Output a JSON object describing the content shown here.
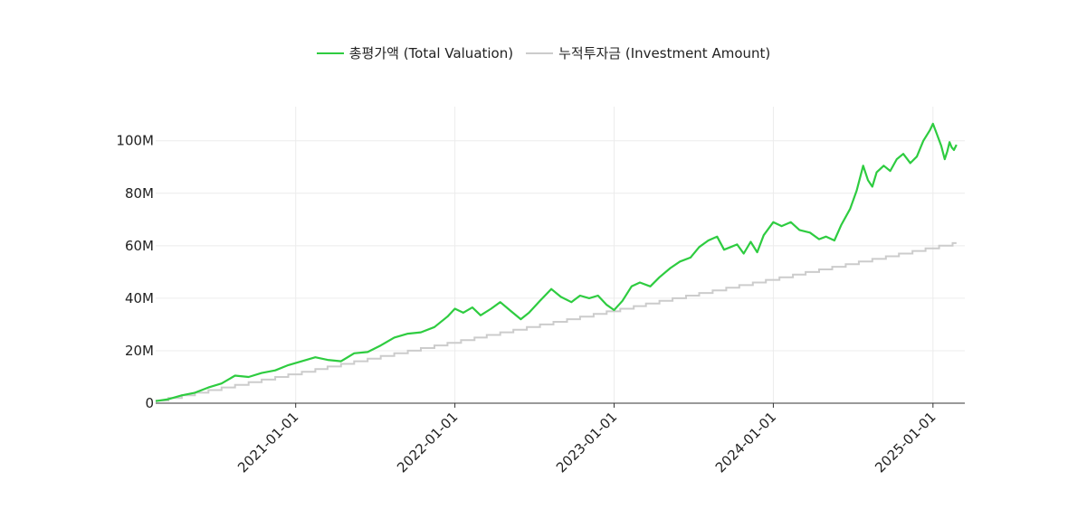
{
  "colors": {
    "valuation": "#2ecc40",
    "investment": "#cccccc",
    "grid": "#ececec",
    "axis": "#333333"
  },
  "legend": {
    "valuation_label": "총평가액 (Total Valuation)",
    "investment_label": "누적투자금 (Investment Amount)"
  },
  "chart_data": {
    "type": "line",
    "x_type": "date",
    "xlim": [
      "2020-02-15",
      "2025-03-15"
    ],
    "ylim": [
      0,
      113000000
    ],
    "grid": true,
    "legend_position": "top-center",
    "y_ticks": [
      {
        "value": 0,
        "label": "0"
      },
      {
        "value": 20000000,
        "label": "20M"
      },
      {
        "value": 40000000,
        "label": "40M"
      },
      {
        "value": 60000000,
        "label": "60M"
      },
      {
        "value": 80000000,
        "label": "80M"
      },
      {
        "value": 100000000,
        "label": "100M"
      }
    ],
    "x_ticks": [
      {
        "value": "2021-01-01",
        "label": "2021-01-01"
      },
      {
        "value": "2022-01-01",
        "label": "2022-01-01"
      },
      {
        "value": "2023-01-01",
        "label": "2023-01-01"
      },
      {
        "value": "2024-01-01",
        "label": "2024-01-01"
      },
      {
        "value": "2025-01-01",
        "label": "2025-01-01"
      }
    ],
    "series": [
      {
        "name": "총평가액 (Total Valuation)",
        "color": "#2ecc40",
        "points": [
          [
            "2020-02-15",
            800000
          ],
          [
            "2020-03-15",
            1500000
          ],
          [
            "2020-04-15",
            3000000
          ],
          [
            "2020-05-15",
            4000000
          ],
          [
            "2020-06-15",
            6000000
          ],
          [
            "2020-07-15",
            7500000
          ],
          [
            "2020-08-15",
            10500000
          ],
          [
            "2020-09-15",
            10000000
          ],
          [
            "2020-10-15",
            11500000
          ],
          [
            "2020-11-15",
            12500000
          ],
          [
            "2020-12-15",
            14500000
          ],
          [
            "2021-01-15",
            16000000
          ],
          [
            "2021-02-15",
            17500000
          ],
          [
            "2021-03-15",
            16500000
          ],
          [
            "2021-04-15",
            16000000
          ],
          [
            "2021-05-15",
            19000000
          ],
          [
            "2021-06-15",
            19500000
          ],
          [
            "2021-07-15",
            22000000
          ],
          [
            "2021-08-15",
            25000000
          ],
          [
            "2021-09-15",
            26500000
          ],
          [
            "2021-10-15",
            27000000
          ],
          [
            "2021-11-15",
            29000000
          ],
          [
            "2021-12-15",
            33000000
          ],
          [
            "2022-01-01",
            36000000
          ],
          [
            "2022-01-20",
            34500000
          ],
          [
            "2022-02-10",
            36500000
          ],
          [
            "2022-03-01",
            33500000
          ],
          [
            "2022-03-25",
            36000000
          ],
          [
            "2022-04-15",
            38500000
          ],
          [
            "2022-05-10",
            35000000
          ],
          [
            "2022-06-01",
            32000000
          ],
          [
            "2022-06-20",
            34500000
          ],
          [
            "2022-07-15",
            39000000
          ],
          [
            "2022-08-10",
            43500000
          ],
          [
            "2022-09-01",
            40500000
          ],
          [
            "2022-09-25",
            38500000
          ],
          [
            "2022-10-15",
            41000000
          ],
          [
            "2022-11-05",
            40000000
          ],
          [
            "2022-11-25",
            41000000
          ],
          [
            "2022-12-15",
            37500000
          ],
          [
            "2023-01-01",
            35500000
          ],
          [
            "2023-01-20",
            39000000
          ],
          [
            "2023-02-10",
            44500000
          ],
          [
            "2023-03-01",
            46000000
          ],
          [
            "2023-03-25",
            44500000
          ],
          [
            "2023-04-15",
            48000000
          ],
          [
            "2023-05-10",
            51500000
          ],
          [
            "2023-06-01",
            54000000
          ],
          [
            "2023-06-25",
            55500000
          ],
          [
            "2023-07-15",
            59500000
          ],
          [
            "2023-08-05",
            62000000
          ],
          [
            "2023-08-25",
            63500000
          ],
          [
            "2023-09-10",
            58500000
          ],
          [
            "2023-09-25",
            59500000
          ],
          [
            "2023-10-10",
            60500000
          ],
          [
            "2023-10-25",
            57000000
          ],
          [
            "2023-11-10",
            61500000
          ],
          [
            "2023-11-25",
            57500000
          ],
          [
            "2023-12-10",
            64000000
          ],
          [
            "2024-01-01",
            69000000
          ],
          [
            "2024-01-20",
            67500000
          ],
          [
            "2024-02-10",
            69000000
          ],
          [
            "2024-03-01",
            66000000
          ],
          [
            "2024-03-25",
            65000000
          ],
          [
            "2024-04-15",
            62500000
          ],
          [
            "2024-05-01",
            63500000
          ],
          [
            "2024-05-20",
            62000000
          ],
          [
            "2024-06-05",
            68000000
          ],
          [
            "2024-06-25",
            74000000
          ],
          [
            "2024-07-10",
            81000000
          ],
          [
            "2024-07-25",
            90500000
          ],
          [
            "2024-08-05",
            85000000
          ],
          [
            "2024-08-15",
            82500000
          ],
          [
            "2024-08-25",
            88000000
          ],
          [
            "2024-09-10",
            90500000
          ],
          [
            "2024-09-25",
            88500000
          ],
          [
            "2024-10-10",
            93000000
          ],
          [
            "2024-10-25",
            95000000
          ],
          [
            "2024-11-10",
            91500000
          ],
          [
            "2024-11-25",
            94000000
          ],
          [
            "2024-12-10",
            100000000
          ],
          [
            "2024-12-25",
            104000000
          ],
          [
            "2025-01-01",
            106500000
          ],
          [
            "2025-01-10",
            102500000
          ],
          [
            "2025-01-20",
            98000000
          ],
          [
            "2025-01-28",
            93000000
          ],
          [
            "2025-02-03",
            96000000
          ],
          [
            "2025-02-08",
            99500000
          ],
          [
            "2025-02-13",
            97500000
          ],
          [
            "2025-02-18",
            96500000
          ],
          [
            "2025-02-24",
            98500000
          ]
        ]
      },
      {
        "name": "누적투자금 (Investment Amount)",
        "color": "#cccccc",
        "step": true,
        "start": "2020-02-15",
        "end": "2025-02-24",
        "initial": 1000000,
        "monthly_increment": 1000000
      }
    ]
  }
}
